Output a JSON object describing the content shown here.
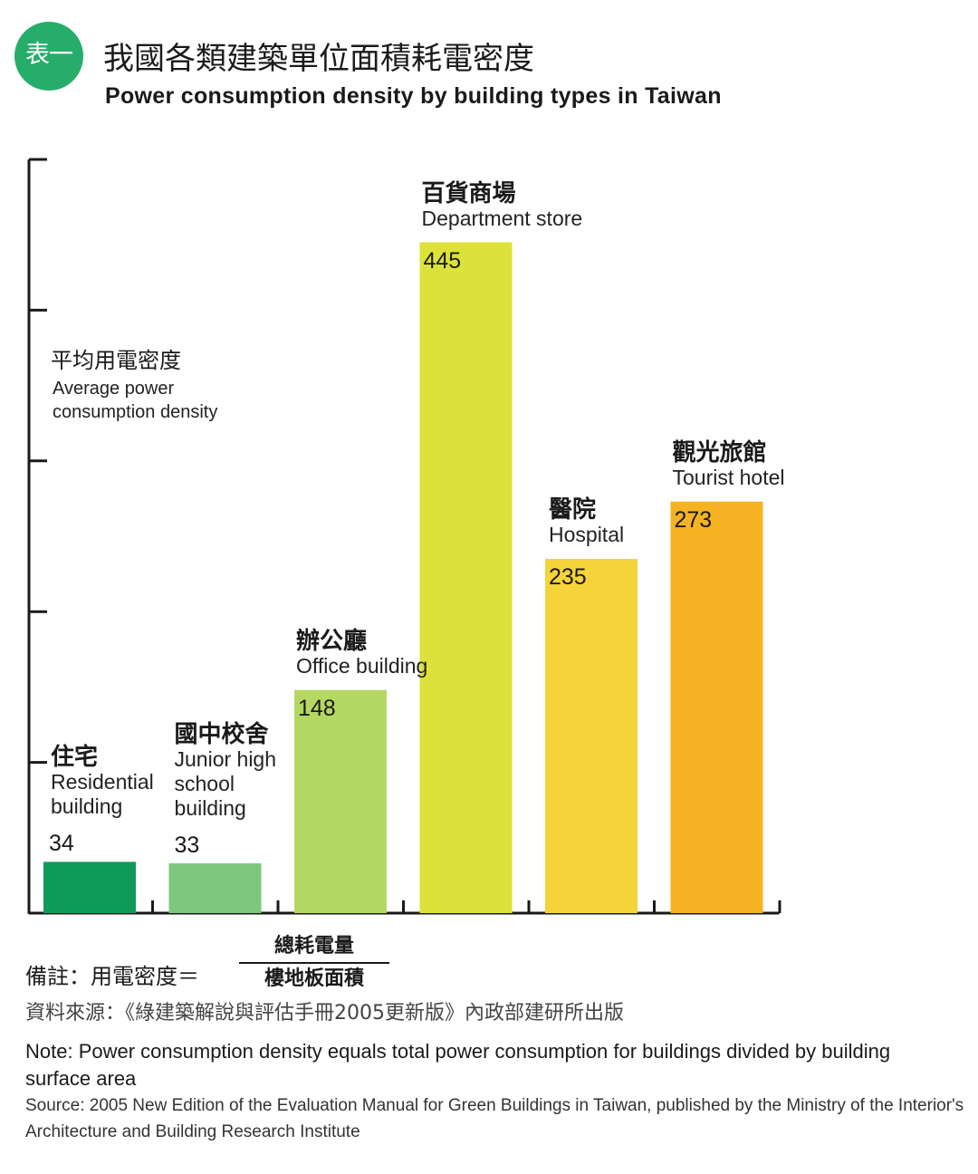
{
  "header": {
    "badge": "表一",
    "title_zh": "我國各類建築單位面積耗電密度",
    "title_en": "Power consumption density by building types in Taiwan"
  },
  "chart_data": {
    "type": "bar",
    "title": "我國各類建築單位面積耗電密度 / Power consumption density by building types in Taiwan",
    "ylabel_zh": "平均用電密度",
    "ylabel_en": "Average power consumption density",
    "ylim": [
      0,
      500
    ],
    "categories": [
      {
        "zh": "住宅",
        "en": "Residential building",
        "value": 34,
        "color": "#0f9a5a"
      },
      {
        "zh": "國中校舍",
        "en": "Junior high school building",
        "value": 33,
        "color": "#7cc87e"
      },
      {
        "zh": "辦公廳",
        "en": "Office building",
        "value": 148,
        "color": "#b5d863"
      },
      {
        "zh": "百貨商場",
        "en": "Department store",
        "value": 445,
        "color": "#dde23a"
      },
      {
        "zh": "醫院",
        "en": "Hospital",
        "value": 235,
        "color": "#f5d33a"
      },
      {
        "zh": "觀光旅館",
        "en": "Tourist hotel",
        "value": 273,
        "color": "#f5b323"
      }
    ]
  },
  "notes": {
    "formula_label": "備註：用電密度＝",
    "numerator": "總耗電量",
    "denominator": "樓地板面積",
    "source_zh": "資料來源：《綠建築解說與評估手冊2005更新版》內政部建研所出版",
    "note_en": "Note: Power consumption density equals total power consumption for buildings divided by building surface area",
    "source_en": "Source: 2005 New Edition of the Evaluation Manual for Green Buildings in Taiwan, published by the Ministry of the Interior's Architecture and Building Research Institute"
  }
}
